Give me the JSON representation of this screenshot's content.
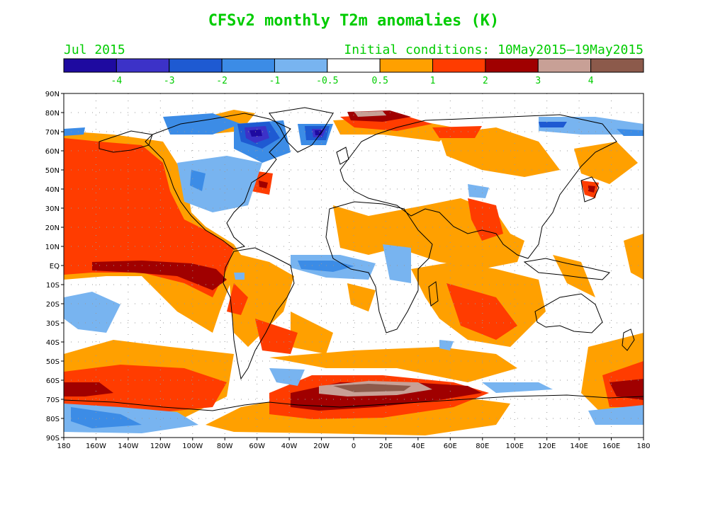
{
  "title": "CFSv2 monthly T2m anomalies (K)",
  "valid_month": "Jul 2015",
  "initial_conditions": "Initial conditions: 10May2015–19May2015",
  "colors": {
    "label_green": "#00cc00",
    "land_outline": "#000000",
    "background": "#ffffff"
  },
  "colorbar": {
    "bins": [
      {
        "color": "#1e0aa0"
      },
      {
        "color": "#3c32c8"
      },
      {
        "color": "#1e5ad2"
      },
      {
        "color": "#3c8ce6"
      },
      {
        "color": "#78b4f0"
      },
      {
        "color": "#ffffff"
      },
      {
        "color": "#ffa000"
      },
      {
        "color": "#ff3c00"
      },
      {
        "color": "#a00000"
      },
      {
        "color": "#c8a096"
      },
      {
        "color": "#8c5a4b"
      }
    ],
    "labels": [
      "-4",
      "-3",
      "-2",
      "-1",
      "-0.5",
      "0.5",
      "1",
      "2",
      "3",
      "4"
    ]
  },
  "map": {
    "lat_labels": [
      "90N",
      "80N",
      "70N",
      "60N",
      "50N",
      "40N",
      "30N",
      "20N",
      "10N",
      "EQ",
      "10S",
      "20S",
      "30S",
      "40S",
      "50S",
      "60S",
      "70S",
      "80S",
      "90S"
    ],
    "lon_labels": [
      "180",
      "160W",
      "140W",
      "120W",
      "100W",
      "80W",
      "60W",
      "40W",
      "20W",
      "0",
      "20E",
      "40E",
      "60E",
      "80E",
      "100E",
      "120E",
      "140E",
      "160E",
      "180"
    ]
  }
}
